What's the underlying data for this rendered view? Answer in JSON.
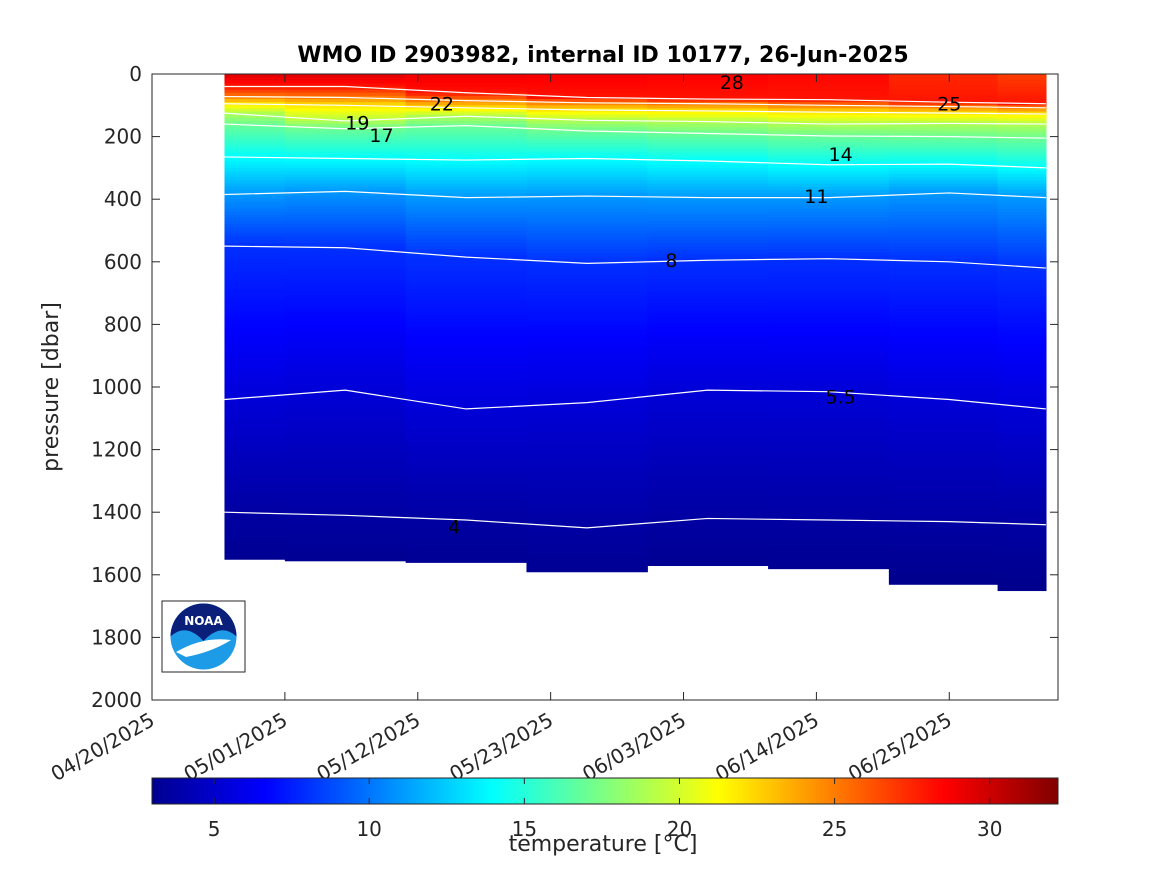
{
  "chart_data": {
    "type": "contour",
    "title": "WMO ID 2903982, internal ID 10177, 26-Jun-2025",
    "xlabel": "",
    "ylabel": "pressure [dbar]",
    "colorbar_label": "temperature [°C]",
    "x_tick_labels": [
      "04/20/2025",
      "05/01/2025",
      "05/12/2025",
      "05/23/2025",
      "06/03/2025",
      "06/14/2025",
      "06/25/2025"
    ],
    "x_range": [
      "2025-04-20",
      "2025-07-04"
    ],
    "y_range": [
      2000,
      0
    ],
    "y_reversed": true,
    "y_ticks": [
      0,
      200,
      400,
      600,
      800,
      1000,
      1200,
      1400,
      1600,
      1800,
      2000
    ],
    "colorbar_range": [
      3.0,
      32.2
    ],
    "colorbar_ticks": [
      5,
      10,
      15,
      20,
      25,
      30
    ],
    "colormap": "jet",
    "profile_dates": [
      "2025-04-26",
      "2025-05-06",
      "2025-05-16",
      "2025-05-26",
      "2025-06-05",
      "2025-06-15",
      "2025-06-25",
      "2025-07-03"
    ],
    "profile_max_pressure": [
      1550,
      1555,
      1560,
      1590,
      1570,
      1580,
      1630,
      1650
    ],
    "surface_temperature": [
      29.5,
      29.5,
      29.0,
      28.8,
      28.6,
      28.4,
      27.4,
      26.8
    ],
    "contour_levels": [
      28,
      25,
      22,
      19,
      17,
      14,
      11,
      8,
      5.5,
      4
    ],
    "isotherms": [
      {
        "level": 28,
        "pressure": [
          40,
          40,
          60,
          75,
          80,
          82,
          90,
          95
        ]
      },
      {
        "level": 25,
        "pressure": [
          72,
          75,
          85,
          92,
          95,
          100,
          104,
          108
        ]
      },
      {
        "level": 22,
        "pressure": [
          95,
          100,
          108,
          115,
          118,
          122,
          125,
          128
        ]
      },
      {
        "level": 19,
        "pressure": [
          125,
          150,
          135,
          148,
          152,
          160,
          158,
          160
        ]
      },
      {
        "level": 17,
        "pressure": [
          160,
          175,
          165,
          182,
          190,
          198,
          200,
          205
        ]
      },
      {
        "level": 14,
        "pressure": [
          265,
          270,
          275,
          270,
          278,
          290,
          288,
          300
        ]
      },
      {
        "level": 11,
        "pressure": [
          385,
          375,
          395,
          390,
          395,
          395,
          380,
          395
        ]
      },
      {
        "level": 8,
        "pressure": [
          550,
          555,
          585,
          605,
          595,
          590,
          600,
          620
        ]
      },
      {
        "level": 5.5,
        "pressure": [
          1040,
          1010,
          1070,
          1050,
          1010,
          1015,
          1040,
          1070
        ]
      },
      {
        "level": 4,
        "pressure": [
          1400,
          1410,
          1425,
          1450,
          1420,
          1425,
          1430,
          1440
        ]
      }
    ],
    "contour_labels": [
      {
        "text": "28",
        "date": "2025-06-07",
        "pressure": 25
      },
      {
        "text": "25",
        "date": "2025-06-25",
        "pressure": 95
      },
      {
        "text": "22",
        "date": "2025-05-14",
        "pressure": 95
      },
      {
        "text": "19",
        "date": "2025-05-07",
        "pressure": 155
      },
      {
        "text": "17",
        "date": "2025-05-09",
        "pressure": 195
      },
      {
        "text": "14",
        "date": "2025-06-16",
        "pressure": 255
      },
      {
        "text": "11",
        "date": "2025-06-14",
        "pressure": 390
      },
      {
        "text": "8",
        "date": "2025-06-02",
        "pressure": 595
      },
      {
        "text": "5.5",
        "date": "2025-06-16",
        "pressure": 1030
      },
      {
        "text": "4",
        "date": "2025-05-15",
        "pressure": 1445
      }
    ],
    "logo_text": "NOAA",
    "colors": {
      "isotherm_line": "#ffffff",
      "axes": "#262626",
      "logo_navy": "#0a1f7a",
      "logo_sky": "#1e9be6"
    }
  }
}
